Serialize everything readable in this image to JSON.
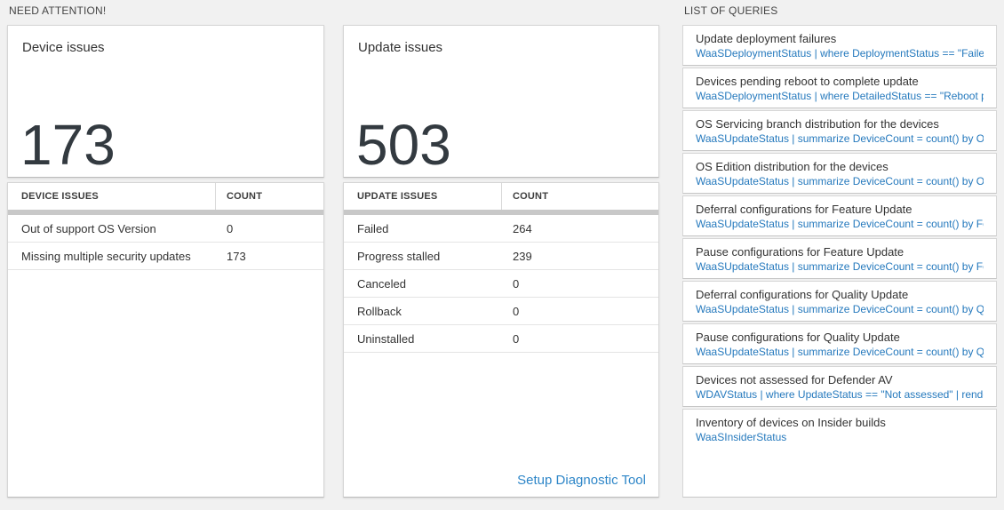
{
  "colors": {
    "page_background": "#f1f1f1",
    "query_blue": "#2579bd",
    "link_blue": "#2e86c8",
    "big_number_dark": "#333a40",
    "gray_bar": "#c8c8c8"
  },
  "need_attention": {
    "header": "NEED ATTENTION!",
    "device_card": {
      "title": "Device issues",
      "value": "173",
      "table": {
        "columns": [
          "DEVICE ISSUES",
          "COUNT"
        ],
        "rows": [
          [
            "Out of support OS Version",
            "0"
          ],
          [
            "Missing multiple security updates",
            "173"
          ]
        ]
      }
    },
    "update_card": {
      "title": "Update issues",
      "value": "503",
      "table": {
        "columns": [
          "UPDATE ISSUES",
          "COUNT"
        ],
        "rows": [
          [
            "Failed",
            "264"
          ],
          [
            "Progress stalled",
            "239"
          ],
          [
            "Canceled",
            "0"
          ],
          [
            "Rollback",
            "0"
          ],
          [
            "Uninstalled",
            "0"
          ]
        ]
      },
      "footer_link": "Setup Diagnostic Tool"
    }
  },
  "queries": {
    "header": "LIST OF QUERIES",
    "items": [
      {
        "title": "Update deployment failures",
        "query": "WaaSDeploymentStatus | where DeploymentStatus == \"Failed\" |..."
      },
      {
        "title": "Devices pending reboot to complete update",
        "query": "WaaSDeploymentStatus | where DetailedStatus == \"Reboot pend..."
      },
      {
        "title": "OS Servicing branch distribution for the devices",
        "query": "WaaSUpdateStatus | summarize DeviceCount = count() by OSSer..."
      },
      {
        "title": "OS Edition distribution for the devices",
        "query": "WaaSUpdateStatus | summarize DeviceCount = count() by OSEdit..."
      },
      {
        "title": "Deferral configurations for Feature Update",
        "query": "WaaSUpdateStatus | summarize DeviceCount = count() by Featur..."
      },
      {
        "title": "Pause configurations for Feature Update",
        "query": "WaaSUpdateStatus | summarize DeviceCount = count() by Featur..."
      },
      {
        "title": "Deferral configurations for Quality Update",
        "query": "WaaSUpdateStatus | summarize DeviceCount = count() by Qualit..."
      },
      {
        "title": "Pause configurations for Quality Update",
        "query": "WaaSUpdateStatus | summarize DeviceCount = count() by Qualit..."
      },
      {
        "title": "Devices not assessed for Defender AV",
        "query": "WDAVStatus | where UpdateStatus == \"Not assessed\" | render ta..."
      },
      {
        "title": "Inventory of devices on Insider builds",
        "query": "WaaSInsiderStatus"
      }
    ]
  }
}
